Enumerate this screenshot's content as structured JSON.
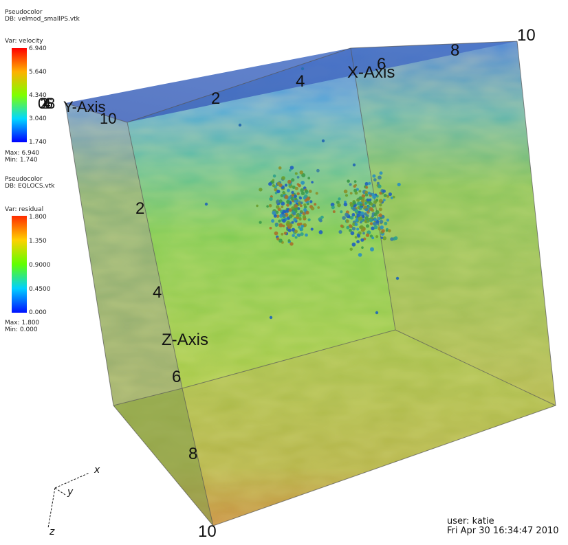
{
  "legend1": {
    "plot_type": "Pseudocolor",
    "db": "DB: velmod_smallPS.vtk",
    "var": "Var: velocity",
    "ticks": [
      "6.940",
      "5.640",
      "4.340",
      "3.040",
      "1.740"
    ],
    "max": "Max: 6.940",
    "min": "Min: 1.740"
  },
  "legend2": {
    "plot_type": "Pseudocolor",
    "db": "DB: EQLOCS.vtk",
    "var": "Var: residual",
    "ticks": [
      "1.800",
      "1.350",
      "0.9000",
      "0.4500",
      "0.000"
    ],
    "max": "Max: 1.800",
    "min": "Min: 0.000"
  },
  "axes": {
    "x_title": "X-Axis",
    "z_title": "Z-Axis",
    "y_title": "Y-Axis",
    "x_ticks": [
      "2",
      "4",
      "6",
      "8",
      "10"
    ],
    "z_ticks": [
      "2",
      "4",
      "6",
      "8",
      "10"
    ],
    "y_ticks_overlap": "02468",
    "y_end": "10"
  },
  "triad": {
    "x": "x",
    "y": "y",
    "z": "z"
  },
  "footer": {
    "user": "user: katie",
    "date": "Fri Apr 30 16:34:47 2010"
  },
  "colors": {
    "rainbow_top": "#ff0000",
    "rainbow_mid": "#00ff00",
    "rainbow_bottom": "#0000ff"
  }
}
